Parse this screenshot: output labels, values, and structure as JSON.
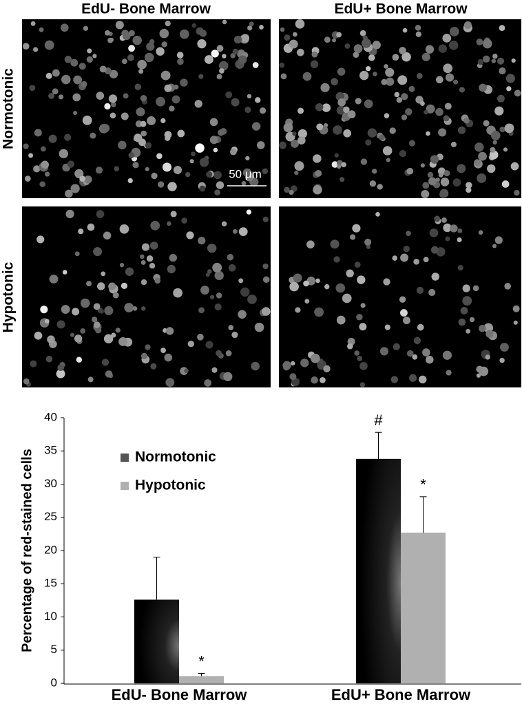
{
  "panels": {
    "columns": [
      "EdU- Bone Marrow",
      "EdU+ Bone Marrow"
    ],
    "rows": [
      "Normotonic",
      "Hypotonic"
    ],
    "scale_bar": "50 μm"
  },
  "chart_data": {
    "type": "bar",
    "y_label": "Percentage of red-stained cells",
    "categories": [
      "EdU- Bone Marrow",
      "EdU+ Bone Marrow"
    ],
    "series": [
      {
        "name": "Normotonic",
        "color": "#000000",
        "values": [
          12.6,
          33.8
        ],
        "errors": [
          6.4,
          4.0
        ],
        "markers": [
          null,
          "#"
        ]
      },
      {
        "name": "Hypotonic",
        "color": "#b0b0b0",
        "values": [
          1.1,
          22.7
        ],
        "errors": [
          0.4,
          5.4
        ],
        "markers": [
          "*",
          "*"
        ]
      }
    ],
    "ylim": [
      0,
      40
    ],
    "yticks": [
      0,
      5,
      10,
      15,
      20,
      25,
      30,
      35,
      40
    ],
    "grid": false
  }
}
